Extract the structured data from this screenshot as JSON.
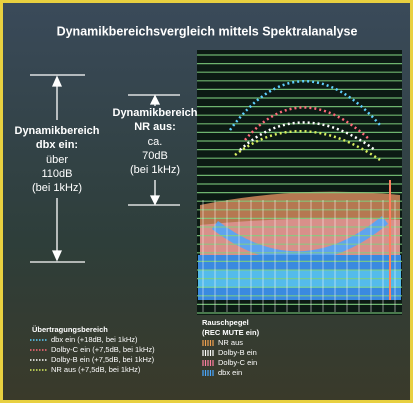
{
  "title": "Dynamikbereichsvergleich mittels Spektralanalyse",
  "panel_dbx": {
    "lines": [
      "Dynamikbereich",
      "dbx ein:",
      "über",
      "110dB",
      "(bei 1kHz)"
    ]
  },
  "panel_nr": {
    "lines": [
      "Dynamikbereich",
      "NR aus:",
      "ca.",
      "70dB",
      "(bei 1kHz)"
    ]
  },
  "legend_transfer": {
    "title": "Übertragungsbereich",
    "items": [
      {
        "label": "dbx ein (+18dB, bei 1kHz)",
        "color": "#5fd0ff"
      },
      {
        "label": "Dolby-C ein (+7,5dB, bei 1kHz)",
        "color": "#ff6a7a"
      },
      {
        "label": "Dolby-B ein (+7,5dB, bei 1kHz)",
        "color": "#ffffff"
      },
      {
        "label": "NR aus (+7,5dB, bei 1kHz)",
        "color": "#d8f060"
      }
    ]
  },
  "legend_noise": {
    "title": "Rauschpegel",
    "subtitle": "(REC MUTE ein)",
    "items": [
      {
        "label": "NR aus",
        "color": "#f0a050"
      },
      {
        "label": "Dolby-B ein",
        "color": "#ffffff"
      },
      {
        "label": "Dolby-C ein",
        "color": "#ff7fa0"
      },
      {
        "label": "dbx ein",
        "color": "#4aa8ff"
      }
    ]
  }
}
